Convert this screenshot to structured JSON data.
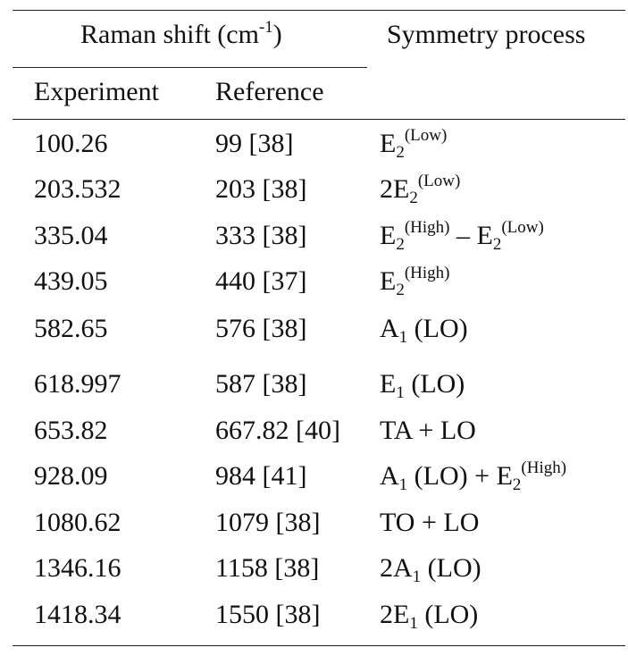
{
  "table": {
    "header": {
      "group_label": "Raman shift (cm",
      "group_unit_exp": "-1",
      "group_close": ")",
      "symmetry_label": "Symmetry process",
      "experiment_label": "Experiment",
      "reference_label": "Reference"
    },
    "rows": [
      {
        "experiment": "100.26",
        "reference": "99 [38]",
        "symmetry": {
          "parts": [
            {
              "b": "E",
              "sub": "2",
              "sup": "(Low)"
            }
          ]
        }
      },
      {
        "experiment": "203.532",
        "reference": "203 [38]",
        "symmetry": {
          "parts": [
            {
              "b": "2E",
              "sub": "2",
              "sup": "(Low)"
            }
          ]
        }
      },
      {
        "experiment": "335.04",
        "reference": "333 [38]",
        "symmetry": {
          "parts": [
            {
              "b": "E",
              "sub": "2",
              "sup": "(High)"
            },
            {
              "t": " – "
            },
            {
              "b": "E",
              "sub": "2",
              "sup": "(Low)"
            }
          ]
        }
      },
      {
        "experiment": "439.05",
        "reference": "440 [37]",
        "symmetry": {
          "parts": [
            {
              "b": "E",
              "sub": "2",
              "sup": "(High)"
            }
          ]
        }
      },
      {
        "experiment": "582.65",
        "reference": "576 [38]",
        "symmetry": {
          "parts": [
            {
              "b": "A",
              "sub": "1"
            },
            {
              "t": " (LO)"
            }
          ]
        }
      },
      {
        "experiment": "618.997",
        "reference": "587 [38]",
        "symmetry": {
          "parts": [
            {
              "b": "E",
              "sub": "1"
            },
            {
              "t": " (LO)"
            }
          ]
        }
      },
      {
        "experiment": "653.82",
        "reference": "667.82 [40]",
        "symmetry": {
          "parts": [
            {
              "t": "TA + LO"
            }
          ]
        }
      },
      {
        "experiment": "928.09",
        "reference": "984 [41]",
        "symmetry": {
          "parts": [
            {
              "b": "A",
              "sub": "1"
            },
            {
              "t": " (LO) + "
            },
            {
              "b": "E",
              "sub": "2",
              "sup": "(High)"
            }
          ]
        }
      },
      {
        "experiment": "1080.62",
        "reference": "1079 [38]",
        "symmetry": {
          "parts": [
            {
              "t": "TO + LO"
            }
          ]
        }
      },
      {
        "experiment": "1346.16",
        "reference": "1158 [38]",
        "symmetry": {
          "parts": [
            {
              "b": "2A",
              "sub": "1"
            },
            {
              "t": " (LO)"
            }
          ]
        }
      },
      {
        "experiment": "1418.34",
        "reference": "1550 [38]",
        "symmetry": {
          "parts": [
            {
              "b": "2E",
              "sub": "1"
            },
            {
              "t": " (LO)"
            }
          ]
        }
      }
    ]
  }
}
